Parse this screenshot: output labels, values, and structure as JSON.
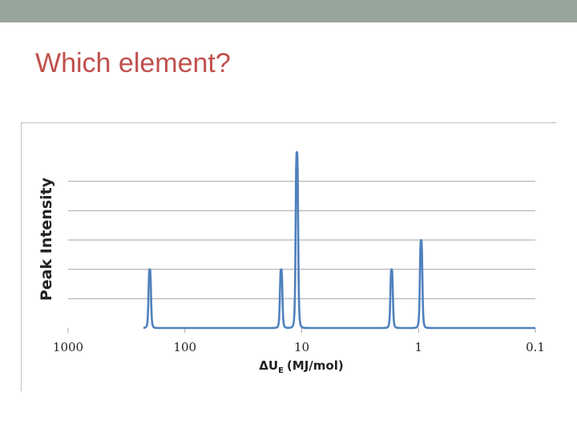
{
  "slide": {
    "title": "Which element?",
    "title_color": "#c0504d",
    "top_bar_color": "#98a59a"
  },
  "chart_data": {
    "type": "line",
    "ylabel": "Peak Intensity",
    "xlabel": "ΔU",
    "xlabel_sub": "E",
    "xlabel_unit": "(MJ/mol)",
    "x_scale": "log-reversed",
    "xlim": [
      1000,
      0.1
    ],
    "ylim": [
      0,
      6
    ],
    "x_ticks": [
      "1000",
      "100",
      "10",
      "1",
      "0.1"
    ],
    "x_tick_values": [
      1000,
      100,
      10,
      1,
      0.1
    ],
    "gridlines": [
      1,
      2,
      3,
      4,
      5
    ],
    "line_color": "#4f81bd",
    "series": [
      {
        "peaks": [
          {
            "x": 200,
            "y": 2
          },
          {
            "x": 15,
            "y": 2
          },
          {
            "x": 11,
            "y": 6
          },
          {
            "x": 1.7,
            "y": 2
          },
          {
            "x": 0.95,
            "y": 3
          }
        ]
      }
    ]
  }
}
